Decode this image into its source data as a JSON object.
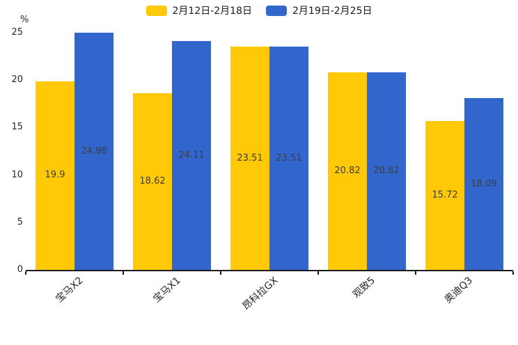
{
  "chart_data": {
    "type": "bar",
    "title": "",
    "xlabel": "",
    "ylabel": "%",
    "categories": [
      "宝马X2",
      "宝马X1",
      "昂科拉GX",
      "观致5",
      "奥迪Q3"
    ],
    "series": [
      {
        "name": "2月12日-2月18日",
        "color": "#FFC907",
        "values": [
          19.9,
          18.62,
          23.51,
          20.82,
          15.72
        ]
      },
      {
        "name": "2月19日-2月25日",
        "color": "#3366CC",
        "values": [
          24.98,
          24.11,
          23.51,
          20.82,
          18.09
        ]
      }
    ],
    "ylim": [
      0,
      25
    ],
    "yticks": [
      0,
      5,
      10,
      15,
      20,
      25
    ],
    "grid": false,
    "legend_position": "top",
    "value_labels": true
  },
  "colors": {
    "background": "#ffffff",
    "axis": "#1a1a1a",
    "tick_text": "#262626",
    "value_label_text": "#3d3d3d",
    "series1": "#FFC907",
    "series2": "#3366CC"
  }
}
